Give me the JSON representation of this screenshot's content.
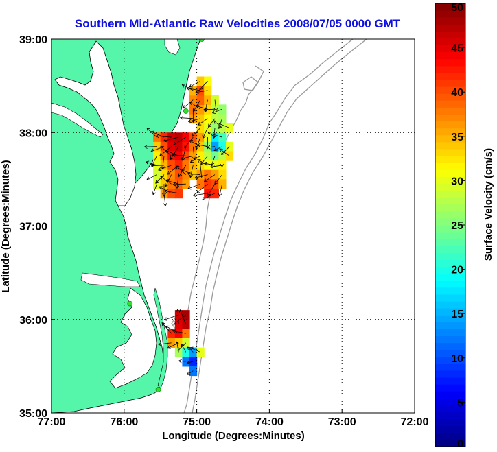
{
  "chart_data": {
    "type": "heatmap",
    "title": "Southern Mid-Atlantic Raw Velocities 2008/07/05 0000 GMT",
    "xlabel": "Longitude (Degrees:Minutes)",
    "ylabel": "Latitude (Degrees:Minutes)",
    "xlim": [
      -77,
      -72
    ],
    "ylim": [
      35,
      39
    ],
    "x_ticks": [
      {
        "value": -77,
        "label": "77:00"
      },
      {
        "value": -76,
        "label": "76:00"
      },
      {
        "value": -75,
        "label": "75:00"
      },
      {
        "value": -74,
        "label": "74:00"
      },
      {
        "value": -73,
        "label": "73:00"
      },
      {
        "value": -72,
        "label": "72:00"
      }
    ],
    "y_ticks": [
      {
        "value": 35,
        "label": "35:00"
      },
      {
        "value": 36,
        "label": "36:00"
      },
      {
        "value": 37,
        "label": "37:00"
      },
      {
        "value": 38,
        "label": "38:00"
      },
      {
        "value": 39,
        "label": "39:00"
      }
    ],
    "grid": "dotted",
    "colorbar": {
      "label": "Surface Velocity (cm/s)",
      "range": [
        0,
        50
      ],
      "ticks": [
        0,
        5,
        10,
        15,
        20,
        25,
        30,
        35,
        40,
        45,
        50
      ],
      "colormap": "jet",
      "placement": "right"
    },
    "colors": {
      "land": "#55f5aa",
      "station": "#33dd33",
      "bathymetry": "#9a9a9a",
      "title": "#1010e0"
    },
    "velocity_cells": [
      {
        "lon": -75.55,
        "lat": 37.95,
        "v": 38
      },
      {
        "lon": -75.45,
        "lat": 37.95,
        "v": 42
      },
      {
        "lon": -75.35,
        "lat": 37.95,
        "v": 46
      },
      {
        "lon": -75.25,
        "lat": 37.95,
        "v": 47
      },
      {
        "lon": -75.15,
        "lat": 37.95,
        "v": 44
      },
      {
        "lon": -75.05,
        "lat": 37.95,
        "v": 40
      },
      {
        "lon": -74.95,
        "lat": 37.95,
        "v": 36
      },
      {
        "lon": -74.85,
        "lat": 37.95,
        "v": 30
      },
      {
        "lon": -74.75,
        "lat": 37.95,
        "v": 18
      },
      {
        "lon": -74.65,
        "lat": 37.95,
        "v": 22
      },
      {
        "lon": -75.55,
        "lat": 37.85,
        "v": 34
      },
      {
        "lon": -75.45,
        "lat": 37.85,
        "v": 40
      },
      {
        "lon": -75.35,
        "lat": 37.85,
        "v": 45
      },
      {
        "lon": -75.25,
        "lat": 37.85,
        "v": 46
      },
      {
        "lon": -75.15,
        "lat": 37.85,
        "v": 43
      },
      {
        "lon": -75.05,
        "lat": 37.85,
        "v": 38
      },
      {
        "lon": -74.95,
        "lat": 37.85,
        "v": 34
      },
      {
        "lon": -74.85,
        "lat": 37.85,
        "v": 26
      },
      {
        "lon": -74.75,
        "lat": 37.85,
        "v": 14
      },
      {
        "lon": -74.65,
        "lat": 37.85,
        "v": 20
      },
      {
        "lon": -74.55,
        "lat": 37.85,
        "v": 30
      },
      {
        "lon": -75.55,
        "lat": 37.75,
        "v": 32
      },
      {
        "lon": -75.45,
        "lat": 37.75,
        "v": 38
      },
      {
        "lon": -75.35,
        "lat": 37.75,
        "v": 43
      },
      {
        "lon": -75.25,
        "lat": 37.75,
        "v": 44
      },
      {
        "lon": -75.15,
        "lat": 37.75,
        "v": 40
      },
      {
        "lon": -75.05,
        "lat": 37.75,
        "v": 36
      },
      {
        "lon": -74.95,
        "lat": 37.75,
        "v": 32
      },
      {
        "lon": -74.85,
        "lat": 37.75,
        "v": 28
      },
      {
        "lon": -74.75,
        "lat": 37.75,
        "v": 24
      },
      {
        "lon": -74.65,
        "lat": 37.75,
        "v": 28
      },
      {
        "lon": -74.55,
        "lat": 37.75,
        "v": 33
      },
      {
        "lon": -75.55,
        "lat": 37.65,
        "v": 30
      },
      {
        "lon": -75.45,
        "lat": 37.65,
        "v": 35
      },
      {
        "lon": -75.35,
        "lat": 37.65,
        "v": 40
      },
      {
        "lon": -75.25,
        "lat": 37.65,
        "v": 42
      },
      {
        "lon": -75.15,
        "lat": 37.65,
        "v": 38
      },
      {
        "lon": -75.05,
        "lat": 37.65,
        "v": 35
      },
      {
        "lon": -74.95,
        "lat": 37.65,
        "v": 33
      },
      {
        "lon": -74.85,
        "lat": 37.65,
        "v": 31
      },
      {
        "lon": -74.75,
        "lat": 37.65,
        "v": 30
      },
      {
        "lon": -74.65,
        "lat": 37.65,
        "v": 32
      },
      {
        "lon": -75.55,
        "lat": 37.55,
        "v": 29
      },
      {
        "lon": -75.45,
        "lat": 37.55,
        "v": 33
      },
      {
        "lon": -75.35,
        "lat": 37.55,
        "v": 37
      },
      {
        "lon": -75.25,
        "lat": 37.55,
        "v": 40
      },
      {
        "lon": -75.15,
        "lat": 37.55,
        "v": 37
      },
      {
        "lon": -75.05,
        "lat": 37.55,
        "v": 34
      },
      {
        "lon": -74.95,
        "lat": 37.55,
        "v": 36
      },
      {
        "lon": -74.85,
        "lat": 37.55,
        "v": 38
      },
      {
        "lon": -74.75,
        "lat": 37.55,
        "v": 36
      },
      {
        "lon": -74.65,
        "lat": 37.55,
        "v": 33
      },
      {
        "lon": -75.55,
        "lat": 37.45,
        "v": 30
      },
      {
        "lon": -75.45,
        "lat": 37.45,
        "v": 34
      },
      {
        "lon": -75.35,
        "lat": 37.45,
        "v": 38
      },
      {
        "lon": -75.25,
        "lat": 37.45,
        "v": 39
      },
      {
        "lon": -75.15,
        "lat": 37.45,
        "v": 36
      },
      {
        "lon": -74.95,
        "lat": 37.45,
        "v": 38
      },
      {
        "lon": -74.85,
        "lat": 37.45,
        "v": 41
      },
      {
        "lon": -74.75,
        "lat": 37.45,
        "v": 40
      },
      {
        "lon": -74.65,
        "lat": 37.45,
        "v": 35
      },
      {
        "lon": -75.45,
        "lat": 37.35,
        "v": 36
      },
      {
        "lon": -75.35,
        "lat": 37.35,
        "v": 40
      },
      {
        "lon": -75.25,
        "lat": 37.35,
        "v": 41
      },
      {
        "lon": -74.85,
        "lat": 37.35,
        "v": 43
      },
      {
        "lon": -74.75,
        "lat": 37.35,
        "v": 42
      },
      {
        "lon": -74.95,
        "lat": 38.05,
        "v": 33
      },
      {
        "lon": -74.85,
        "lat": 38.05,
        "v": 30
      },
      {
        "lon": -74.75,
        "lat": 38.05,
        "v": 26
      },
      {
        "lon": -74.65,
        "lat": 38.05,
        "v": 28
      },
      {
        "lon": -74.55,
        "lat": 38.05,
        "v": 30
      },
      {
        "lon": -75.05,
        "lat": 38.15,
        "v": 36
      },
      {
        "lon": -74.95,
        "lat": 38.15,
        "v": 34
      },
      {
        "lon": -74.85,
        "lat": 38.15,
        "v": 31
      },
      {
        "lon": -74.75,
        "lat": 38.15,
        "v": 28
      },
      {
        "lon": -74.65,
        "lat": 38.15,
        "v": 27
      },
      {
        "lon": -75.05,
        "lat": 38.25,
        "v": 38
      },
      {
        "lon": -74.95,
        "lat": 38.25,
        "v": 36
      },
      {
        "lon": -74.85,
        "lat": 38.25,
        "v": 33
      },
      {
        "lon": -74.75,
        "lat": 38.25,
        "v": 28
      },
      {
        "lon": -74.65,
        "lat": 38.25,
        "v": 26
      },
      {
        "lon": -75.05,
        "lat": 38.35,
        "v": 37
      },
      {
        "lon": -74.95,
        "lat": 38.35,
        "v": 39
      },
      {
        "lon": -74.85,
        "lat": 38.35,
        "v": 35
      },
      {
        "lon": -74.75,
        "lat": 38.35,
        "v": 29
      },
      {
        "lon": -75.05,
        "lat": 38.45,
        "v": 35
      },
      {
        "lon": -74.95,
        "lat": 38.45,
        "v": 40
      },
      {
        "lon": -74.85,
        "lat": 38.45,
        "v": 33
      },
      {
        "lon": -74.95,
        "lat": 38.55,
        "v": 34
      },
      {
        "lon": -74.85,
        "lat": 38.55,
        "v": 31
      },
      {
        "lon": -75.25,
        "lat": 36.05,
        "v": 46
      },
      {
        "lon": -75.15,
        "lat": 36.05,
        "v": 48
      },
      {
        "lon": -75.25,
        "lat": 35.95,
        "v": 45
      },
      {
        "lon": -75.15,
        "lat": 35.95,
        "v": 47
      },
      {
        "lon": -75.35,
        "lat": 35.85,
        "v": 42
      },
      {
        "lon": -75.25,
        "lat": 35.85,
        "v": 44
      },
      {
        "lon": -75.15,
        "lat": 35.85,
        "v": 38
      },
      {
        "lon": -75.35,
        "lat": 35.75,
        "v": 36
      },
      {
        "lon": -75.25,
        "lat": 35.75,
        "v": 34
      },
      {
        "lon": -75.15,
        "lat": 35.75,
        "v": 29
      },
      {
        "lon": -75.25,
        "lat": 35.65,
        "v": 27
      },
      {
        "lon": -75.15,
        "lat": 35.65,
        "v": 20
      },
      {
        "lon": -75.05,
        "lat": 35.65,
        "v": 14
      },
      {
        "lon": -74.95,
        "lat": 35.65,
        "v": 30
      },
      {
        "lon": -75.15,
        "lat": 35.55,
        "v": 12
      },
      {
        "lon": -75.05,
        "lat": 35.55,
        "v": 8
      },
      {
        "lon": -75.05,
        "lat": 35.45,
        "v": 12
      }
    ],
    "stations": [
      {
        "lon": -74.93,
        "lat": 39.0
      },
      {
        "lon": -75.15,
        "lat": 38.23
      },
      {
        "lon": -75.92,
        "lat": 36.17
      },
      {
        "lon": -75.53,
        "lat": 35.25
      }
    ]
  }
}
